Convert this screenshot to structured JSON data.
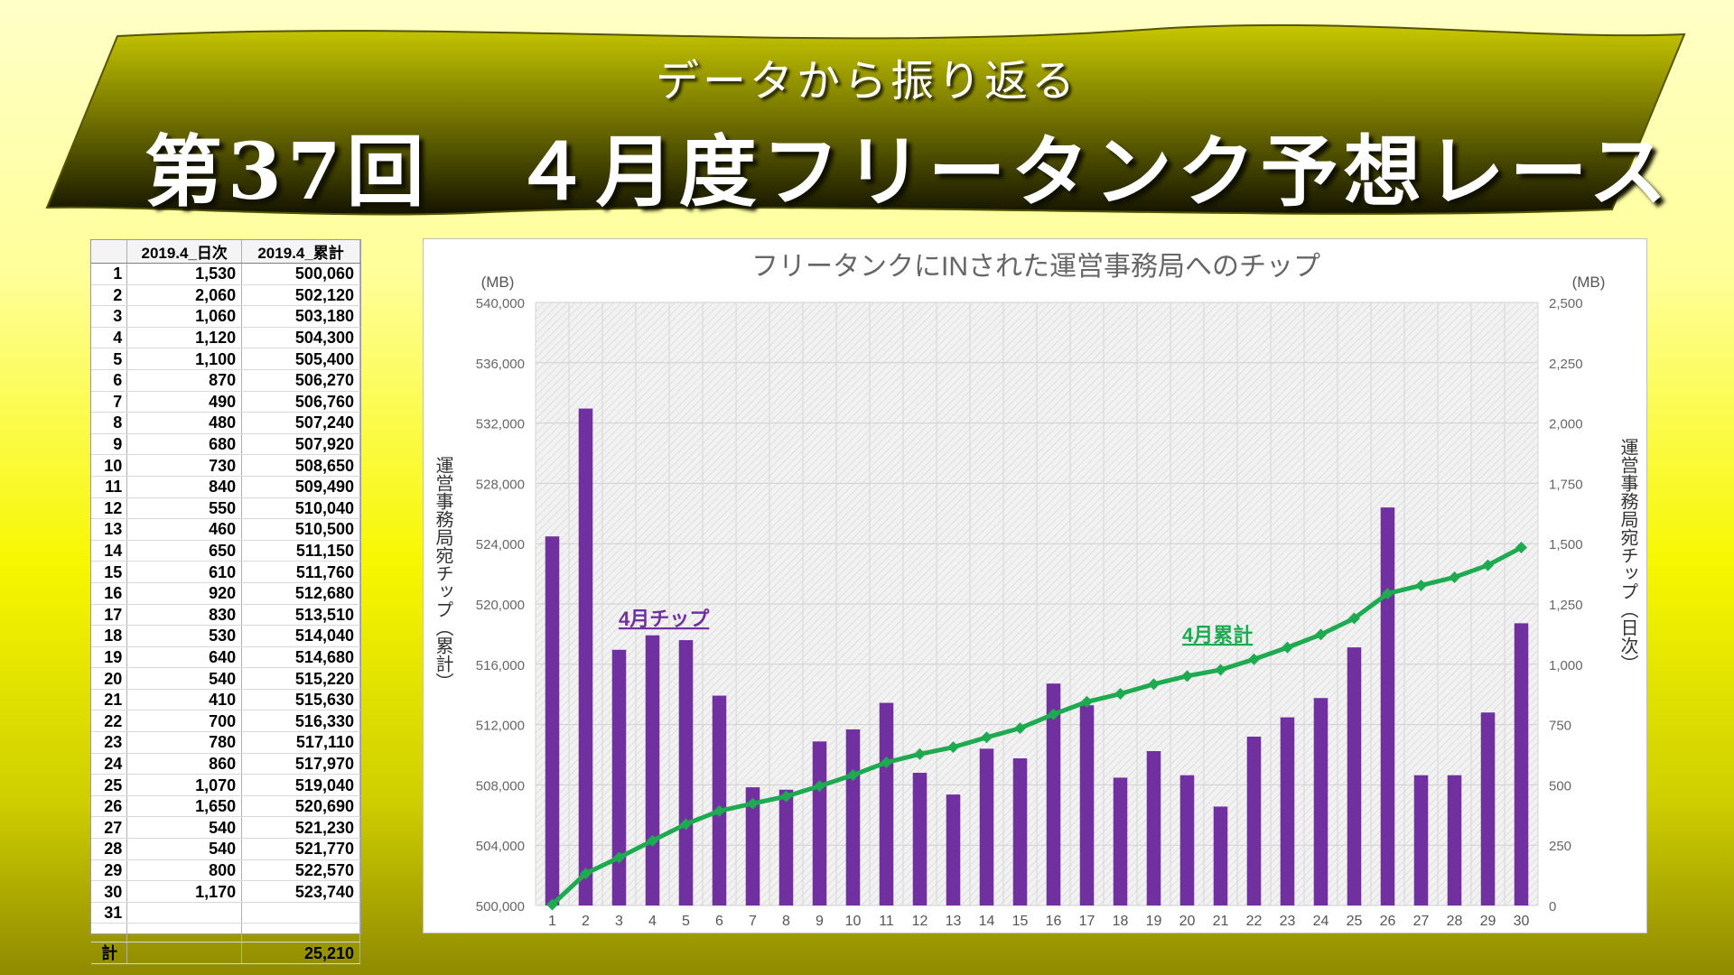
{
  "banner": {
    "subtitle": "データから振り返る",
    "title": "第37回　４月度フリータンク予想レース"
  },
  "table": {
    "headers": [
      "",
      "2019.4_日次",
      "2019.4_累計"
    ],
    "rows": [
      [
        "1",
        "1,530",
        "500,060"
      ],
      [
        "2",
        "2,060",
        "502,120"
      ],
      [
        "3",
        "1,060",
        "503,180"
      ],
      [
        "4",
        "1,120",
        "504,300"
      ],
      [
        "5",
        "1,100",
        "505,400"
      ],
      [
        "6",
        "870",
        "506,270"
      ],
      [
        "7",
        "490",
        "506,760"
      ],
      [
        "8",
        "480",
        "507,240"
      ],
      [
        "9",
        "680",
        "507,920"
      ],
      [
        "10",
        "730",
        "508,650"
      ],
      [
        "11",
        "840",
        "509,490"
      ],
      [
        "12",
        "550",
        "510,040"
      ],
      [
        "13",
        "460",
        "510,500"
      ],
      [
        "14",
        "650",
        "511,150"
      ],
      [
        "15",
        "610",
        "511,760"
      ],
      [
        "16",
        "920",
        "512,680"
      ],
      [
        "17",
        "830",
        "513,510"
      ],
      [
        "18",
        "530",
        "514,040"
      ],
      [
        "19",
        "640",
        "514,680"
      ],
      [
        "20",
        "540",
        "515,220"
      ],
      [
        "21",
        "410",
        "515,630"
      ],
      [
        "22",
        "700",
        "516,330"
      ],
      [
        "23",
        "780",
        "517,110"
      ],
      [
        "24",
        "860",
        "517,970"
      ],
      [
        "25",
        "1,070",
        "519,040"
      ],
      [
        "26",
        "1,650",
        "520,690"
      ],
      [
        "27",
        "540",
        "521,230"
      ],
      [
        "28",
        "540",
        "521,770"
      ],
      [
        "29",
        "800",
        "522,570"
      ],
      [
        "30",
        "1,170",
        "523,740"
      ],
      [
        "31",
        "",
        ""
      ]
    ],
    "total_label": "計",
    "total_value": "25,210"
  },
  "chart_data": {
    "type": "bar+line",
    "title": "フリータンクにINされた運営事務局へのチップ",
    "categories": [
      "1",
      "2",
      "3",
      "4",
      "5",
      "6",
      "7",
      "8",
      "9",
      "10",
      "11",
      "12",
      "13",
      "14",
      "15",
      "16",
      "17",
      "18",
      "19",
      "20",
      "21",
      "22",
      "23",
      "24",
      "25",
      "26",
      "27",
      "28",
      "29",
      "30"
    ],
    "series": [
      {
        "name": "4月チップ",
        "type": "bar",
        "axis": "right",
        "color": "#7030a0",
        "values": [
          1530,
          2060,
          1060,
          1120,
          1100,
          870,
          490,
          480,
          680,
          730,
          840,
          550,
          460,
          650,
          610,
          920,
          830,
          530,
          640,
          540,
          410,
          700,
          780,
          860,
          1070,
          1650,
          540,
          540,
          800,
          1170
        ]
      },
      {
        "name": "4月累計",
        "type": "line",
        "axis": "left",
        "color": "#1eaa50",
        "values": [
          500060,
          502120,
          503180,
          504300,
          505400,
          506270,
          506760,
          507240,
          507920,
          508650,
          509490,
          510040,
          510500,
          511150,
          511760,
          512680,
          513510,
          514040,
          514680,
          515220,
          515630,
          516330,
          517110,
          517970,
          519040,
          520690,
          521230,
          521770,
          522570,
          523740
        ]
      }
    ],
    "left_axis": {
      "unit": "(MB)",
      "label": "運営事務局宛チップ（累計）",
      "range": [
        500000,
        540000
      ],
      "ticks": [
        "500,000",
        "504,000",
        "508,000",
        "512,000",
        "516,000",
        "520,000",
        "524,000",
        "528,000",
        "532,000",
        "536,000",
        "540,000"
      ]
    },
    "right_axis": {
      "unit": "(MB)",
      "label": "運営事務局宛チップ（日次）",
      "range": [
        0,
        2500
      ],
      "ticks": [
        "0",
        "250",
        "500",
        "750",
        "1,000",
        "1,250",
        "1,500",
        "1,750",
        "2,000",
        "2,250",
        "2,500"
      ]
    },
    "annotations": [
      "4月チップ",
      "4月累計"
    ]
  }
}
